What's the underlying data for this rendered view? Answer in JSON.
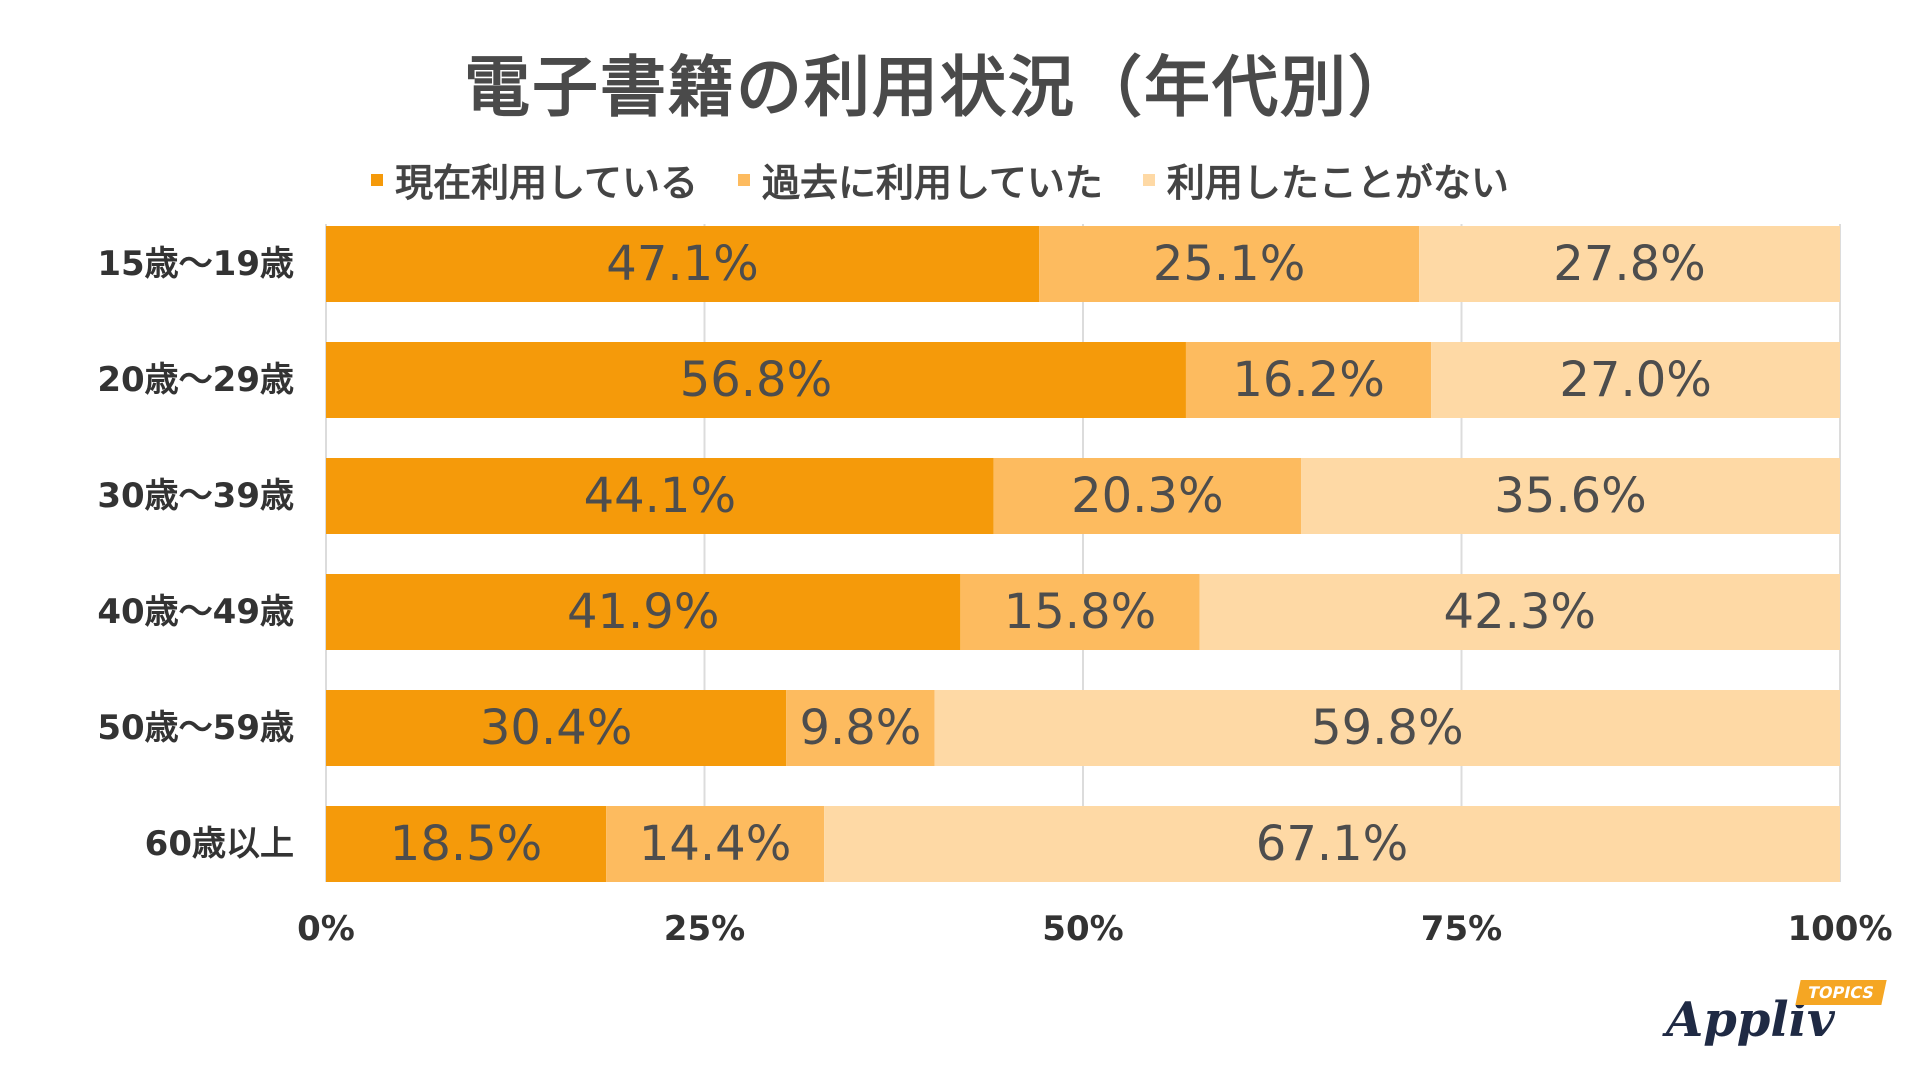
{
  "chart_data": {
    "type": "bar",
    "orientation": "horizontal",
    "stacked": true,
    "title": "電子書籍の利用状況（年代別）",
    "categories": [
      "15歳〜19歳",
      "20歳〜29歳",
      "30歳〜39歳",
      "40歳〜49歳",
      "50歳〜59歳",
      "60歳以上"
    ],
    "series": [
      {
        "name": "現在利用している",
        "color": "#F59A0A",
        "values": [
          47.1,
          56.8,
          44.1,
          41.9,
          30.4,
          18.5
        ],
        "labels": [
          "47.1%",
          "56.8%",
          "44.1%",
          "41.9%",
          "30.4%",
          "18.5%"
        ]
      },
      {
        "name": "過去に利用していた",
        "color": "#FDBB5F",
        "values": [
          25.1,
          16.2,
          20.3,
          15.8,
          9.8,
          14.4
        ],
        "labels": [
          "25.1%",
          "16.2%",
          "20.3%",
          "15.8%",
          "9.8%",
          "14.4%"
        ]
      },
      {
        "name": "利用したことがない",
        "color": "#FED9A5",
        "values": [
          27.8,
          27.0,
          35.6,
          42.3,
          59.8,
          67.1
        ],
        "labels": [
          "27.8%",
          "27.0%",
          "35.6%",
          "42.3%",
          "59.8%",
          "67.1%"
        ]
      }
    ],
    "xlim": [
      0,
      100
    ],
    "xticks": [
      0,
      25,
      50,
      75,
      100
    ],
    "xtick_labels": [
      "0%",
      "25%",
      "50%",
      "75%",
      "100%"
    ],
    "grid": true,
    "legend_position": "top"
  },
  "logo": {
    "name": "Appliv",
    "badge": "TOPICS"
  }
}
